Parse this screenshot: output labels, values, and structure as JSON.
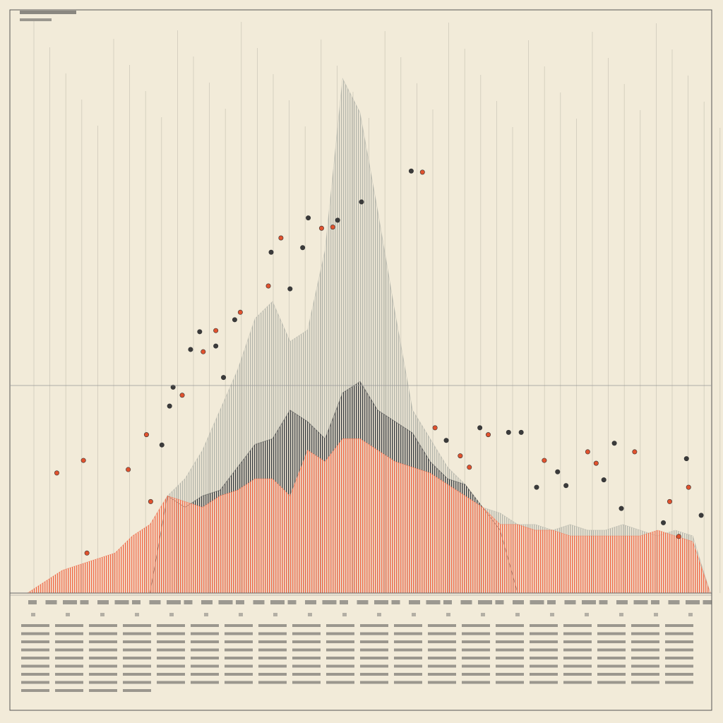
{
  "chart_data": [
    {
      "type": "area",
      "x": [
        0,
        2.5,
        5,
        7.5,
        10,
        12.5,
        15,
        17.5,
        20,
        22.5,
        25,
        27.5,
        30,
        32.5,
        35,
        37.5,
        40,
        42.5,
        45,
        47.5,
        50,
        52.5,
        55,
        57.5,
        60,
        62.5,
        65,
        67.5,
        70,
        72.5,
        75,
        77.5,
        80,
        82.5,
        85,
        87.5,
        90,
        92.5,
        95,
        97.5,
        100
      ],
      "xlim": [
        0,
        100
      ],
      "ylim": [
        0,
        100
      ],
      "series": [
        {
          "color": "#b4b5ab",
          "values": [
            0,
            0,
            0,
            0,
            0,
            0,
            0,
            0,
            0,
            17,
            20,
            25,
            32,
            39,
            48,
            51,
            44,
            46,
            60,
            90,
            84,
            67,
            49,
            32,
            27,
            22,
            19,
            15,
            14,
            12,
            12,
            11,
            12,
            11,
            11,
            12,
            11,
            10,
            11,
            10,
            0
          ]
        },
        {
          "color": "#393c40",
          "values": [
            0,
            0,
            0,
            0,
            0,
            0,
            0,
            0,
            0,
            17,
            15,
            17,
            18,
            22,
            26,
            27,
            32,
            30,
            27,
            35,
            37,
            32,
            30,
            28,
            23,
            20,
            19,
            15,
            11,
            0,
            0,
            0,
            0,
            0,
            0,
            0,
            0,
            0,
            0,
            0,
            0
          ]
        },
        {
          "color": "#f06a48",
          "values": [
            0,
            0,
            2,
            4,
            5,
            6,
            7,
            10,
            12,
            17,
            16,
            15,
            17,
            18,
            20,
            20,
            17,
            25,
            23,
            27,
            27,
            25,
            23,
            22,
            21,
            19,
            17,
            15,
            12,
            12,
            11,
            11,
            10,
            10,
            10,
            10,
            10,
            11,
            10,
            9,
            0
          ]
        }
      ]
    },
    {
      "type": "scatter",
      "xlim": [
        0,
        100
      ],
      "ylim": [
        0,
        100
      ],
      "series": [
        {
          "color": "#e0522e",
          "x": [
            6.7,
            10.5,
            16.9,
            19.5,
            20.1,
            11.0,
            24.6,
            27.6,
            29.4,
            32.9,
            36.9,
            38.7,
            44.5,
            46.1,
            58.9,
            60.7,
            64.3,
            65.6,
            68.3,
            76.3,
            82.5,
            83.7,
            89.2,
            94.2,
            96.9,
            95.5
          ],
          "values": [
            21.0,
            23.2,
            21.6,
            27.7,
            16.0,
            7.0,
            34.6,
            42.2,
            45.9,
            49.1,
            53.7,
            62.1,
            63.8,
            64.0,
            73.6,
            28.9,
            24.0,
            22.0,
            27.7,
            23.2,
            24.7,
            22.7,
            24.7,
            16.0,
            18.5,
            9.9
          ]
        },
        {
          "color": "#3b3b3b",
          "x": [
            21.7,
            22.8,
            23.3,
            27.1,
            25.8,
            30.5,
            29.4,
            32.1,
            37.3,
            40.0,
            41.8,
            42.6,
            46.8,
            50.2,
            57.3,
            67.1,
            71.2,
            73.0,
            62.3,
            75.2,
            78.2,
            79.4,
            84.8,
            86.3,
            96.6,
            98.7,
            93.3,
            87.3
          ],
          "values": [
            25.9,
            32.7,
            36.0,
            45.7,
            42.6,
            37.7,
            43.2,
            47.8,
            59.6,
            53.2,
            60.4,
            65.6,
            65.2,
            68.4,
            73.8,
            28.9,
            28.1,
            28.1,
            26.7,
            18.5,
            21.2,
            18.8,
            19.8,
            26.2,
            23.5,
            13.6,
            12.3,
            14.8
          ]
        }
      ]
    }
  ]
}
